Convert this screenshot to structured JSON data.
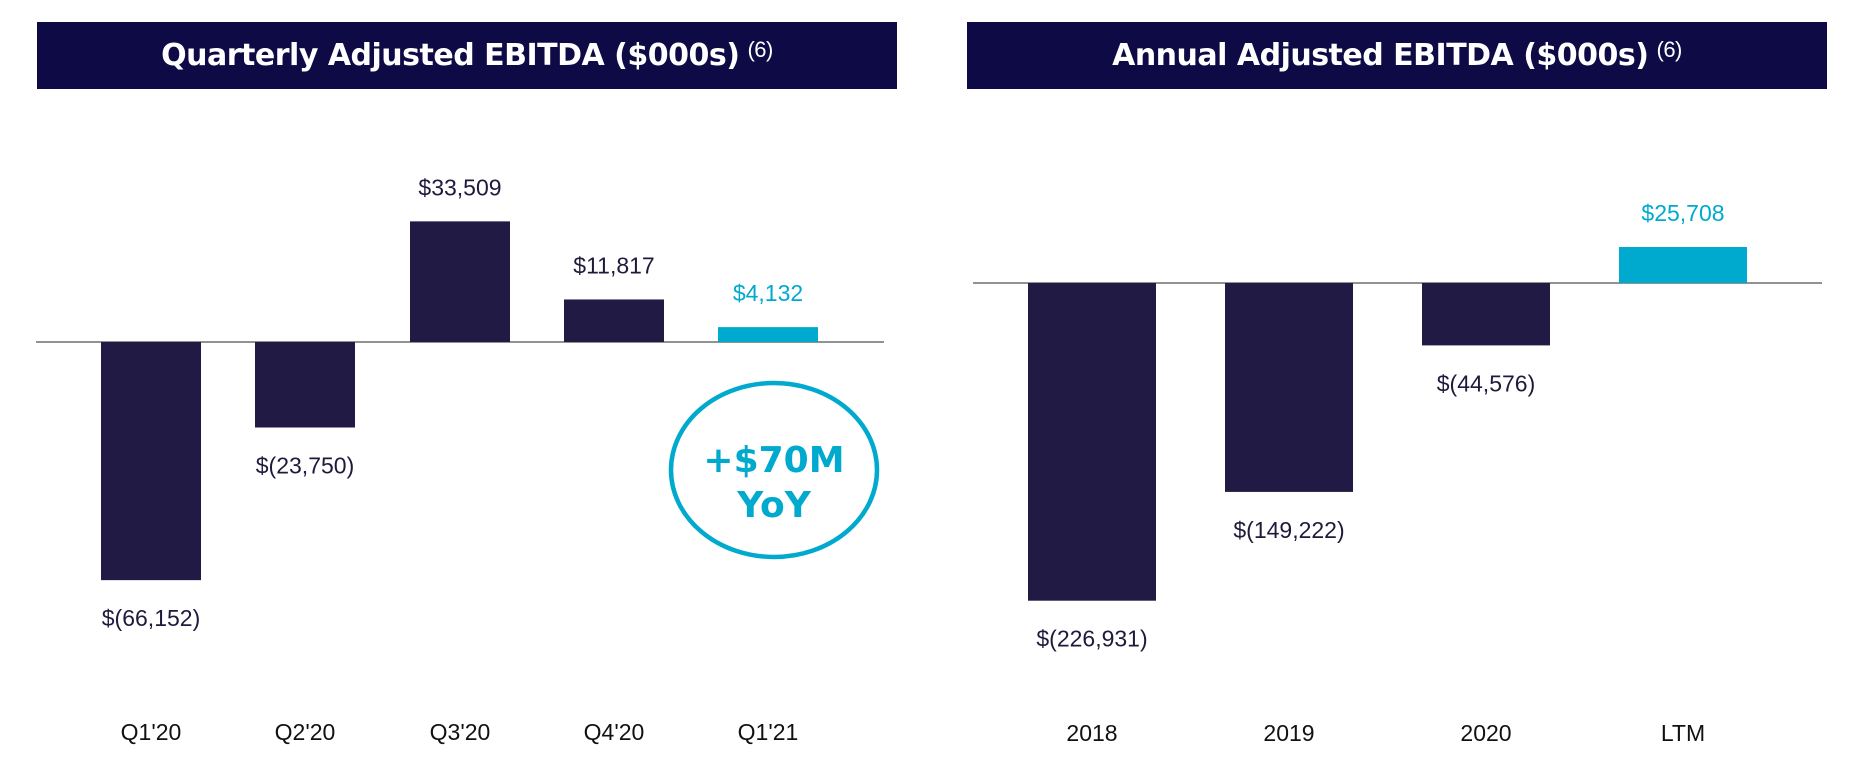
{
  "colors": {
    "header_bg": "#0d0a45",
    "negative_bar": "#201a45",
    "highlight": "#00a9ce",
    "text": "#1e1a3c"
  },
  "chart_data": [
    {
      "type": "bar",
      "title": "Quarterly Adjusted EBITDA ($000s)",
      "title_note": "(6)",
      "categories": [
        "Q1'20",
        "Q2'20",
        "Q3'20",
        "Q4'20",
        "Q1'21"
      ],
      "values": [
        -66152,
        -23750,
        33509,
        11817,
        4132
      ],
      "labels": [
        "$(66,152)",
        "$(23,750)",
        "$33,509",
        "$11,817",
        "$4,132"
      ],
      "highlight_index": 4,
      "callout": {
        "line1": "+$70M",
        "line2": "YoY"
      }
    },
    {
      "type": "bar",
      "title": "Annual Adjusted EBITDA ($000s)",
      "title_note": "(6)",
      "categories": [
        "2018",
        "2019",
        "2020",
        "LTM"
      ],
      "values": [
        -226931,
        -149222,
        -44576,
        25708
      ],
      "labels": [
        "$(226,931)",
        "$(149,222)",
        "$(44,576)",
        "$25,708"
      ],
      "highlight_index": 3
    }
  ]
}
